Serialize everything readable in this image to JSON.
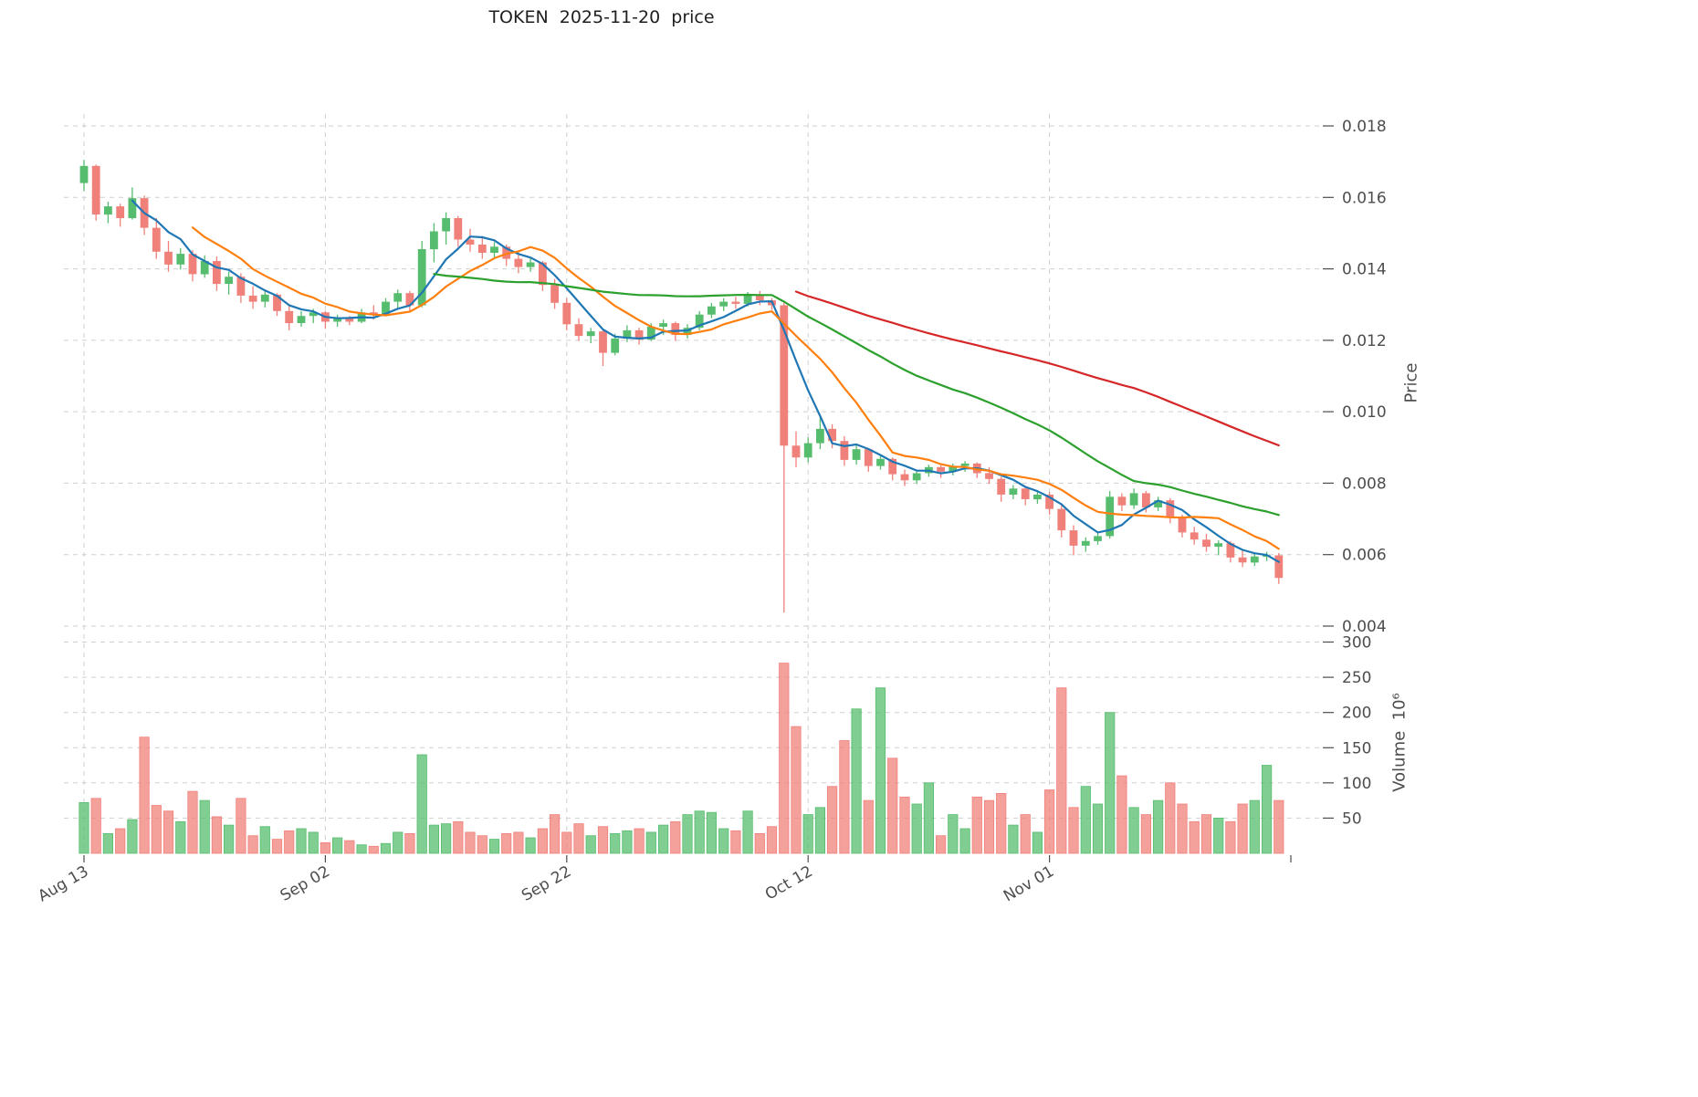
{
  "title": "TOKEN  2025-11-20  price",
  "axes": {
    "price_label": "Price",
    "volume_label": "Volume  10⁶",
    "price_ticks": [
      0.018,
      0.016,
      0.014,
      0.012,
      0.01,
      0.008,
      0.006,
      0.004
    ],
    "volume_ticks": [
      300,
      250,
      200,
      150,
      100,
      50
    ],
    "x_ticks": [
      {
        "index": 0,
        "label": "Aug 13"
      },
      {
        "index": 20,
        "label": "Sep 02"
      },
      {
        "index": 40,
        "label": "Sep 22"
      },
      {
        "index": 60,
        "label": "Oct 12"
      },
      {
        "index": 80,
        "label": "Nov 01"
      },
      {
        "index": 100,
        "label": ""
      }
    ]
  },
  "colors": {
    "up": "#57bd6e",
    "down": "#f0807a",
    "grid": "#cfcfcf",
    "text": "#4d4d4d",
    "title": "#1f1f1f",
    "ma_fast": "#1f77b4",
    "ma_mid": "#ff7f0e",
    "ma_slow": "#2ca02c",
    "ma_slowest": "#d62728"
  },
  "chart_data": {
    "type": "candlestick",
    "title": "TOKEN  2025-11-20  price",
    "x_tick_labels": [
      "Aug 13",
      "Sep 02",
      "Sep 22",
      "Oct 12",
      "Nov 01"
    ],
    "price_axis": {
      "min": 0.004,
      "max": 0.018,
      "label": "Price",
      "ticks": [
        0.018,
        0.016,
        0.014,
        0.012,
        0.01,
        0.008,
        0.006,
        0.004
      ]
    },
    "volume_axis": {
      "min": 0,
      "max": 300,
      "label": "Volume 10⁶",
      "ticks": [
        300,
        250,
        200,
        150,
        100,
        50
      ]
    },
    "num_candles": 100,
    "ohlc": [
      [
        0.0164,
        0.01705,
        0.01618,
        0.01688
      ],
      [
        0.01688,
        0.01692,
        0.01535,
        0.01552
      ],
      [
        0.01552,
        0.01588,
        0.01528,
        0.01575
      ],
      [
        0.01575,
        0.01582,
        0.01518,
        0.01542
      ],
      [
        0.01542,
        0.01628,
        0.01538,
        0.01598
      ],
      [
        0.01598,
        0.01605,
        0.01495,
        0.01515
      ],
      [
        0.01515,
        0.01542,
        0.01428,
        0.01448
      ],
      [
        0.01448,
        0.01478,
        0.01392,
        0.01412
      ],
      [
        0.01412,
        0.01458,
        0.01398,
        0.01442
      ],
      [
        0.01442,
        0.01452,
        0.01365,
        0.01385
      ],
      [
        0.01385,
        0.01438,
        0.01375,
        0.01422
      ],
      [
        0.01422,
        0.01435,
        0.01338,
        0.01358
      ],
      [
        0.01358,
        0.01392,
        0.01328,
        0.01378
      ],
      [
        0.01378,
        0.01388,
        0.01305,
        0.01325
      ],
      [
        0.01325,
        0.01352,
        0.01288,
        0.01308
      ],
      [
        0.01308,
        0.01338,
        0.01292,
        0.01328
      ],
      [
        0.01328,
        0.01332,
        0.01268,
        0.01282
      ],
      [
        0.01282,
        0.01298,
        0.01228,
        0.01248
      ],
      [
        0.01248,
        0.01282,
        0.01238,
        0.01268
      ],
      [
        0.01268,
        0.01288,
        0.01248,
        0.01278
      ],
      [
        0.01278,
        0.01282,
        0.01232,
        0.01252
      ],
      [
        0.01252,
        0.01272,
        0.01238,
        0.01262
      ],
      [
        0.01262,
        0.01268,
        0.01242,
        0.01252
      ],
      [
        0.01252,
        0.01288,
        0.01248,
        0.01278
      ],
      [
        0.01278,
        0.01298,
        0.01258,
        0.01272
      ],
      [
        0.01272,
        0.01318,
        0.01268,
        0.01308
      ],
      [
        0.01308,
        0.01342,
        0.01288,
        0.01332
      ],
      [
        0.01332,
        0.01338,
        0.01278,
        0.01298
      ],
      [
        0.01298,
        0.01478,
        0.01292,
        0.01455
      ],
      [
        0.01455,
        0.01528,
        0.01418,
        0.01505
      ],
      [
        0.01505,
        0.01558,
        0.01468,
        0.01542
      ],
      [
        0.01542,
        0.01548,
        0.01462,
        0.01482
      ],
      [
        0.01482,
        0.01512,
        0.01448,
        0.01468
      ],
      [
        0.01468,
        0.01492,
        0.01428,
        0.01445
      ],
      [
        0.01445,
        0.01475,
        0.01432,
        0.01462
      ],
      [
        0.01462,
        0.01468,
        0.01408,
        0.01428
      ],
      [
        0.01428,
        0.01448,
        0.01388,
        0.01405
      ],
      [
        0.01405,
        0.01432,
        0.01392,
        0.01418
      ],
      [
        0.01418,
        0.01422,
        0.01338,
        0.01355
      ],
      [
        0.01355,
        0.01372,
        0.01288,
        0.01305
      ],
      [
        0.01305,
        0.01318,
        0.01228,
        0.01245
      ],
      [
        0.01245,
        0.01262,
        0.01198,
        0.01212
      ],
      [
        0.01212,
        0.01235,
        0.01192,
        0.01225
      ],
      [
        0.01225,
        0.01228,
        0.01128,
        0.01165
      ],
      [
        0.01165,
        0.01218,
        0.01158,
        0.01205
      ],
      [
        0.01205,
        0.01242,
        0.01195,
        0.01228
      ],
      [
        0.01228,
        0.01235,
        0.01188,
        0.01202
      ],
      [
        0.01202,
        0.01248,
        0.01198,
        0.01238
      ],
      [
        0.01238,
        0.01258,
        0.01215,
        0.01248
      ],
      [
        0.01248,
        0.01252,
        0.01198,
        0.01215
      ],
      [
        0.01215,
        0.01245,
        0.01205,
        0.01235
      ],
      [
        0.01235,
        0.01282,
        0.01228,
        0.01272
      ],
      [
        0.01272,
        0.01305,
        0.01262,
        0.01295
      ],
      [
        0.01295,
        0.01318,
        0.01282,
        0.01308
      ],
      [
        0.01308,
        0.01322,
        0.01288,
        0.01302
      ],
      [
        0.01302,
        0.01335,
        0.01295,
        0.01325
      ],
      [
        0.01325,
        0.01338,
        0.01298,
        0.01312
      ],
      [
        0.01312,
        0.01318,
        0.01285,
        0.01298
      ],
      [
        0.01298,
        0.01305,
        0.00438,
        0.00905
      ],
      [
        0.00905,
        0.00945,
        0.00845,
        0.00872
      ],
      [
        0.00872,
        0.00928,
        0.00858,
        0.00912
      ],
      [
        0.00912,
        0.00985,
        0.00895,
        0.00952
      ],
      [
        0.00952,
        0.00965,
        0.00898,
        0.00918
      ],
      [
        0.00918,
        0.00932,
        0.00848,
        0.00865
      ],
      [
        0.00865,
        0.00905,
        0.00852,
        0.00895
      ],
      [
        0.00895,
        0.00898,
        0.00832,
        0.00848
      ],
      [
        0.00848,
        0.00878,
        0.00838,
        0.00868
      ],
      [
        0.00868,
        0.00872,
        0.00808,
        0.00825
      ],
      [
        0.00825,
        0.00838,
        0.00792,
        0.00808
      ],
      [
        0.00808,
        0.00835,
        0.00798,
        0.00828
      ],
      [
        0.00828,
        0.00852,
        0.00818,
        0.00845
      ],
      [
        0.00845,
        0.0085,
        0.00815,
        0.00832
      ],
      [
        0.00832,
        0.00855,
        0.00822,
        0.00848
      ],
      [
        0.00848,
        0.00862,
        0.00832,
        0.00855
      ],
      [
        0.00855,
        0.00858,
        0.00815,
        0.00828
      ],
      [
        0.00828,
        0.00845,
        0.00798,
        0.00812
      ],
      [
        0.00812,
        0.00818,
        0.00748,
        0.00768
      ],
      [
        0.00768,
        0.00795,
        0.00755,
        0.00785
      ],
      [
        0.00785,
        0.00792,
        0.00738,
        0.00755
      ],
      [
        0.00755,
        0.00778,
        0.00742,
        0.00768
      ],
      [
        0.00768,
        0.00775,
        0.00712,
        0.00728
      ],
      [
        0.00728,
        0.00742,
        0.00648,
        0.00668
      ],
      [
        0.00668,
        0.00682,
        0.00598,
        0.00625
      ],
      [
        0.00625,
        0.00648,
        0.00608,
        0.00638
      ],
      [
        0.00638,
        0.00662,
        0.00628,
        0.00652
      ],
      [
        0.00652,
        0.00778,
        0.00645,
        0.00762
      ],
      [
        0.00762,
        0.00772,
        0.00722,
        0.00738
      ],
      [
        0.00738,
        0.00785,
        0.00728,
        0.00772
      ],
      [
        0.00772,
        0.00778,
        0.00718,
        0.00732
      ],
      [
        0.00732,
        0.00762,
        0.00722,
        0.00752
      ],
      [
        0.00752,
        0.00758,
        0.00688,
        0.00705
      ],
      [
        0.00705,
        0.00712,
        0.00648,
        0.00662
      ],
      [
        0.00662,
        0.00678,
        0.00628,
        0.00642
      ],
      [
        0.00642,
        0.00658,
        0.00608,
        0.00622
      ],
      [
        0.00622,
        0.0064,
        0.00598,
        0.00632
      ],
      [
        0.00632,
        0.00638,
        0.00578,
        0.00592
      ],
      [
        0.00592,
        0.00615,
        0.00565,
        0.00578
      ],
      [
        0.00578,
        0.00602,
        0.00568,
        0.00595
      ],
      [
        0.00595,
        0.00608,
        0.00582,
        0.00598
      ],
      [
        0.00598,
        0.00605,
        0.00518,
        0.00535
      ]
    ],
    "volume": [
      72,
      78,
      28,
      35,
      48,
      165,
      68,
      60,
      45,
      88,
      75,
      52,
      40,
      78,
      25,
      38,
      20,
      32,
      35,
      30,
      15,
      22,
      18,
      12,
      10,
      14,
      30,
      28,
      140,
      40,
      42,
      45,
      30,
      25,
      20,
      28,
      30,
      22,
      35,
      55,
      30,
      42,
      25,
      38,
      28,
      32,
      35,
      30,
      40,
      45,
      55,
      60,
      58,
      35,
      32,
      60,
      28,
      38,
      270,
      180,
      55,
      65,
      95,
      160,
      205,
      75,
      235,
      135,
      80,
      70,
      100,
      25,
      55,
      35,
      80,
      75,
      85,
      40,
      55,
      30,
      90,
      235,
      65,
      95,
      70,
      200,
      110,
      65,
      55,
      75,
      100,
      70,
      45,
      55,
      50,
      45,
      70,
      75,
      125,
      75
    ],
    "moving_averages": [
      {
        "name": "ma-fast",
        "window": 5,
        "color": "#1f77b4"
      },
      {
        "name": "ma-mid",
        "window": 10,
        "color": "#ff7f0e"
      },
      {
        "name": "ma-slow",
        "window": 30,
        "color": "#2ca02c"
      },
      {
        "name": "ma-slowest",
        "window": 60,
        "color": "#d62728"
      }
    ]
  }
}
